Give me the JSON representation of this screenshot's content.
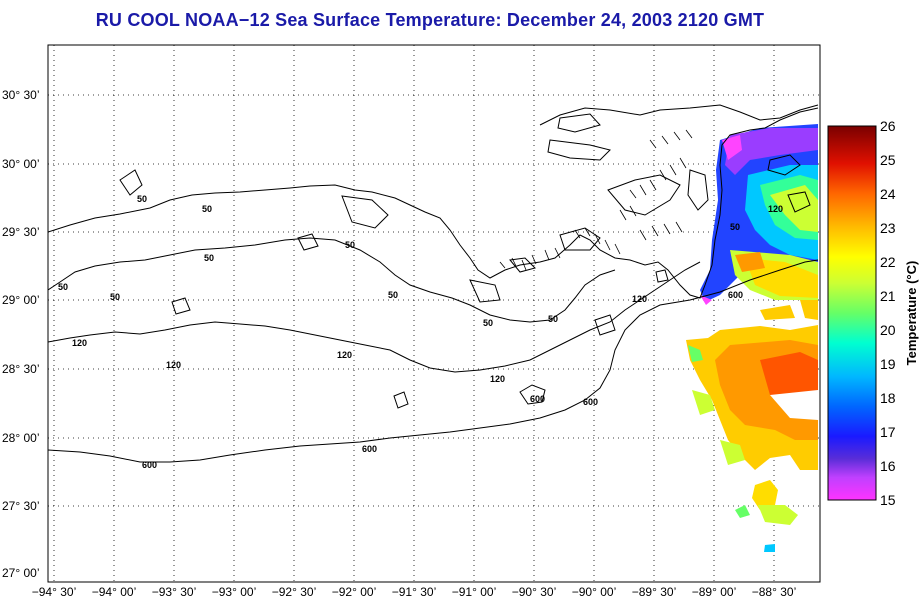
{
  "title": "RU COOL  NOAA−12  Sea Surface Temperature:  December 24, 2003 2120 GMT",
  "map": {
    "latitude_labels": [
      "30° 30’",
      "30° 00’",
      "29° 30’",
      "29° 00’",
      "28° 30’",
      "28° 00’",
      "27° 30’",
      "27° 00’"
    ],
    "longitude_labels": [
      "−94° 30’",
      "−94° 00’",
      "−93° 30’",
      "−93° 00’",
      "−92° 30’",
      "−92° 00’",
      "−91° 30’",
      "−91° 00’",
      "−90° 30’",
      "−90° 00’",
      "−89° 30’",
      "−89° 00’",
      "−88° 30’"
    ],
    "grid": "dotted",
    "isobath_labels": {
      "d50": "50",
      "d120": "120",
      "d600": "600"
    }
  },
  "colorbar": {
    "title": "Temperature (°C)",
    "ticks": [
      "26",
      "25",
      "24",
      "23",
      "22",
      "21",
      "20",
      "19",
      "18",
      "17",
      "16",
      "15"
    ],
    "range": [
      15,
      26
    ],
    "colors": [
      "#ff33ff",
      "#8a3dff",
      "#1a1aff",
      "#0080ff",
      "#00e0ff",
      "#33ff99",
      "#b3ff33",
      "#ffff00",
      "#ffcc00",
      "#ff8000",
      "#ff2000",
      "#b00000",
      "#7a0000"
    ]
  }
}
